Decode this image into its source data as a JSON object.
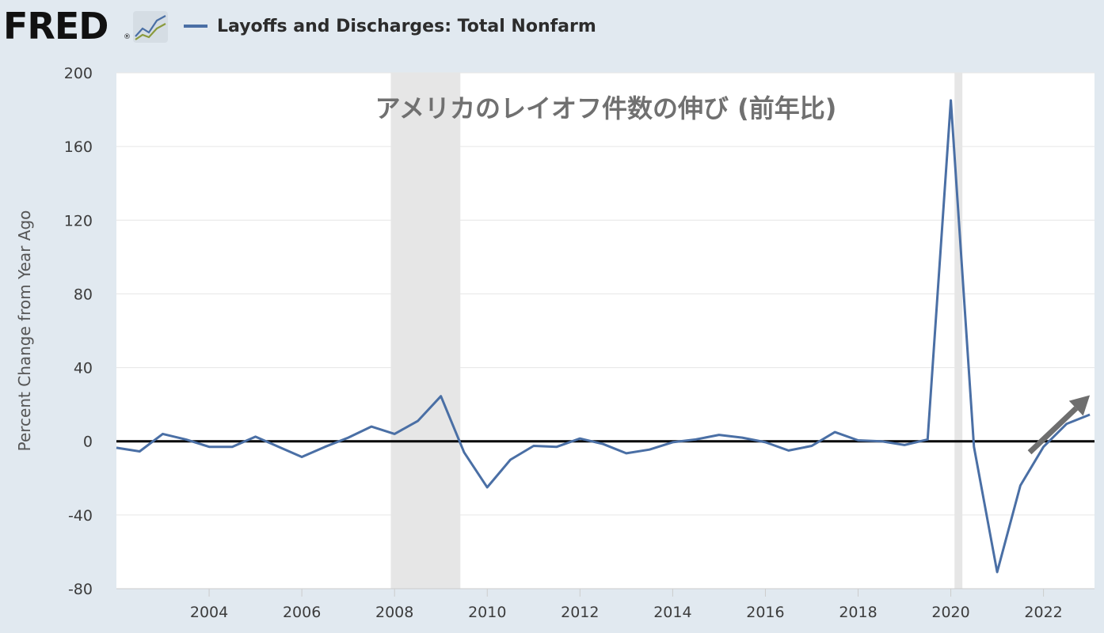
{
  "header": {
    "logo_text": "FRED",
    "logo_mark": "®",
    "logo_icon": "line-chart-icon",
    "legend_label": "Layoffs and Discharges: Total Nonfarm",
    "legend_color": "#4a6fa5"
  },
  "chart_data": {
    "type": "line",
    "title": "",
    "annotation": "アメリカのレイオフ件数の伸び (前年比)",
    "ylabel": "Percent Change from Year Ago",
    "xlabel": "",
    "ylim": [
      -80,
      200
    ],
    "xlim": [
      2002.0,
      2023.1
    ],
    "yticks": [
      -80,
      -40,
      0,
      40,
      80,
      120,
      160,
      200
    ],
    "xticks": [
      2004,
      2006,
      2008,
      2010,
      2012,
      2014,
      2016,
      2018,
      2020,
      2022
    ],
    "grid": true,
    "zero_line": true,
    "recessions": [
      [
        2007.92,
        2009.42
      ],
      [
        2020.08,
        2020.25
      ]
    ],
    "trend_arrow": {
      "from": [
        2021.7,
        -6
      ],
      "to": [
        2023.0,
        25
      ],
      "color": "#6e6e6e"
    },
    "series": [
      {
        "name": "Layoffs and Discharges: Total Nonfarm",
        "color": "#4a6fa5",
        "x": [
          2002.0,
          2002.5,
          2003.0,
          2003.5,
          2004.0,
          2004.5,
          2005.0,
          2005.5,
          2006.0,
          2006.5,
          2007.0,
          2007.5,
          2008.0,
          2008.5,
          2009.0,
          2009.5,
          2010.0,
          2010.5,
          2011.0,
          2011.5,
          2012.0,
          2012.5,
          2013.0,
          2013.5,
          2014.0,
          2014.5,
          2015.0,
          2015.5,
          2016.0,
          2016.5,
          2017.0,
          2017.5,
          2018.0,
          2018.5,
          2019.0,
          2019.5,
          2020.0,
          2020.5,
          2021.0,
          2021.5,
          2022.0,
          2022.5,
          2023.0
        ],
        "values": [
          -3.5,
          -5.5,
          4,
          1,
          -3,
          -3,
          2.5,
          -3,
          -8.5,
          -3,
          2,
          8,
          4,
          11,
          24.5,
          -6,
          -25,
          -10,
          -2.5,
          -3,
          1.5,
          -1.5,
          -6.5,
          -4.5,
          -0.5,
          1,
          3.5,
          2,
          -0.5,
          -5,
          -2.5,
          5,
          0.5,
          0,
          -2,
          1,
          185,
          -3,
          -71,
          -24,
          -3,
          9.5,
          14.5
        ]
      }
    ]
  }
}
